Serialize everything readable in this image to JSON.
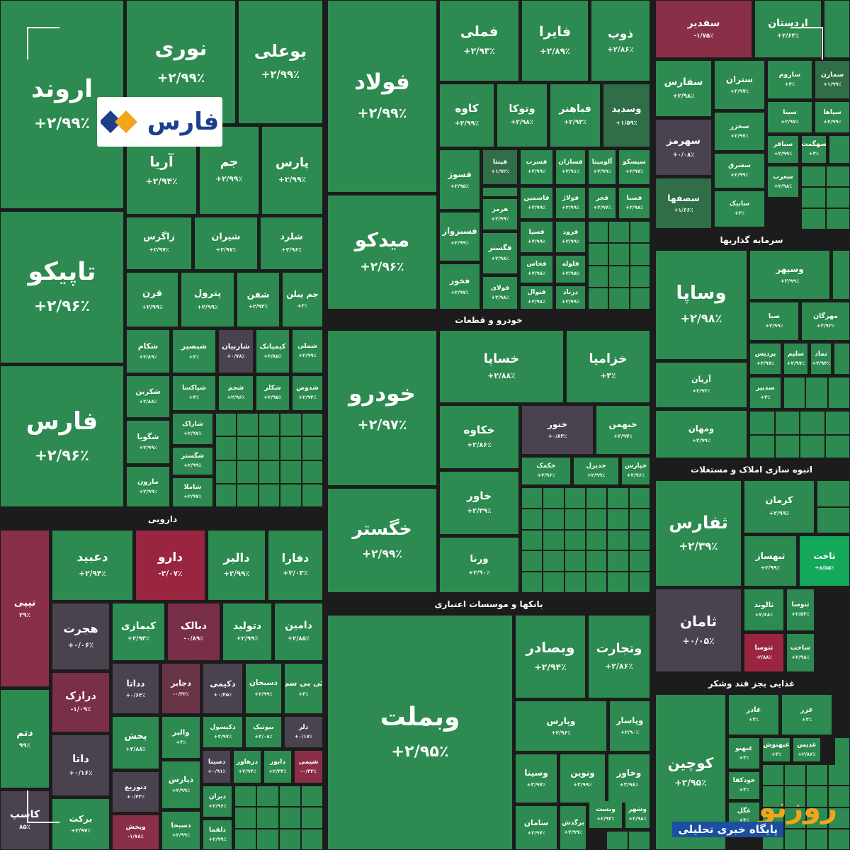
{
  "tiles": [
    {
      "name": "اروند",
      "change": "+۲/۹۹٪",
      "color": "#2d8a50"
    },
    {
      "name": "تاپیکو",
      "change": "+۲/۹۶٪",
      "color": "#2d8a50"
    },
    {
      "name": "فارس",
      "change": "+۲/۹۶٪",
      "color": "#2d8a50"
    },
    {
      "name": "نوری",
      "change": "+۲/۹۹٪",
      "color": "#2d8a50"
    },
    {
      "name": "بوعلی",
      "change": "+۲/۹۹٪",
      "color": "#2d8a50"
    },
    {
      "name": "آریا",
      "change": "+۲/۹۴٪",
      "color": "#2d8a50"
    },
    {
      "name": "جم",
      "change": "+۲/۹۹٪",
      "color": "#2d8a50"
    },
    {
      "name": "پارس",
      "change": "+۲/۹۹٪",
      "color": "#2d8a50"
    },
    {
      "name": "زاگرس",
      "change": "+۲/۹۷٪",
      "color": "#2d8a50"
    },
    {
      "name": "شیران",
      "change": "+۲/۹۷٪",
      "color": "#2d8a50"
    },
    {
      "name": "شلرد",
      "change": "+۲/۹۶٪",
      "color": "#2d8a50"
    },
    {
      "name": "قرن",
      "change": "+۲/۹۹٪",
      "color": "#2d8a50"
    },
    {
      "name": "پترول",
      "change": "+۲/۹۹٪",
      "color": "#2d8a50"
    },
    {
      "name": "شفن",
      "change": "+۲/۹۳٪",
      "color": "#2d8a50"
    },
    {
      "name": "جم پیلن",
      "change": "+۳٪",
      "color": "#2d8a50"
    },
    {
      "name": "شکام",
      "change": "+۲/۸۹٪",
      "color": "#2d8a50"
    },
    {
      "name": "شبصیر",
      "change": "+۳٪",
      "color": "#2d8a50"
    },
    {
      "name": "شاربیان",
      "change": "+۰/۷۸٪",
      "color": "#4b4250"
    },
    {
      "name": "کیمیاتک",
      "change": "+۲/۸۵٪",
      "color": "#2d8a50"
    },
    {
      "name": "شملی",
      "change": "+۲/۹۹٪",
      "color": "#2d8a50"
    },
    {
      "name": "شکربن",
      "change": "+۲/۸۸٪",
      "color": "#2d8a50"
    },
    {
      "name": "شپاکسا",
      "change": "+۳٪",
      "color": "#2d8a50"
    },
    {
      "name": "شجم",
      "change": "+۲/۹۶٪",
      "color": "#2d8a50"
    },
    {
      "name": "شکلر",
      "change": "+۲/۹۵٪",
      "color": "#2d8a50"
    },
    {
      "name": "شدوص",
      "change": "+۲/۹۴٪",
      "color": "#2d8a50"
    },
    {
      "name": "شگویا",
      "change": "+۲/۹۹٪",
      "color": "#2d8a50"
    },
    {
      "name": "شاراک",
      "change": "+۲/۹۷٪",
      "color": "#2d8a50"
    },
    {
      "name": "شگستر",
      "change": "+۲/۹۹٪",
      "color": "#2d8a50"
    },
    {
      "name": "مارون",
      "change": "+۲/۹۹٪",
      "color": "#2d8a50"
    },
    {
      "name": "شاملا",
      "change": "+۲/۹۷٪",
      "color": "#2d8a50"
    },
    {
      "name": "تیپی",
      "change": "۲۹٪",
      "color": "#8a2f48"
    },
    {
      "name": "دعبید",
      "change": "+۲/۹۴٪",
      "color": "#2d8a50"
    },
    {
      "name": "دارو",
      "change": "-۲/۰۷٪",
      "color": "#9a2540"
    },
    {
      "name": "دالبر",
      "change": "+۲/۹۹٪",
      "color": "#2d8a50"
    },
    {
      "name": "دفارا",
      "change": "+۲/۰۳٪",
      "color": "#2d8a50"
    },
    {
      "name": "هجرت",
      "change": "+۰/۰۶٪",
      "color": "#4b4250"
    },
    {
      "name": "کیمازی",
      "change": "+۲/۹۳٪",
      "color": "#2d8a50"
    },
    {
      "name": "دبالک",
      "change": "-۰/۸۹٪",
      "color": "#7a2f48"
    },
    {
      "name": "دتولید",
      "change": "+۲/۹۹٪",
      "color": "#2d8a50"
    },
    {
      "name": "دامین",
      "change": "+۲/۸۵٪",
      "color": "#2d8a50"
    },
    {
      "name": "دتم",
      "change": "۹۹٪",
      "color": "#2d8a50"
    },
    {
      "name": "درازک",
      "change": "-۱/۰۹٪",
      "color": "#7a2f48"
    },
    {
      "name": "دداتا",
      "change": "+۰/۶۳٪",
      "color": "#4b4250"
    },
    {
      "name": "دجابر",
      "change": "-۰/۳۲٪",
      "color": "#6a3448"
    },
    {
      "name": "دکیمی",
      "change": "+۰/۴۵٪",
      "color": "#4b4250"
    },
    {
      "name": "دسبحان",
      "change": "+۲/۹۹٪",
      "color": "#2d8a50"
    },
    {
      "name": "کی بی سی",
      "change": "+۳٪",
      "color": "#2d8a50"
    },
    {
      "name": "داتا",
      "change": "+۰/۱۶٪",
      "color": "#4b4250"
    },
    {
      "name": "پخش",
      "change": "+۲/۸۸٪",
      "color": "#2d8a50"
    },
    {
      "name": "والبر",
      "change": "+۳٪",
      "color": "#2d8a50"
    },
    {
      "name": "دکپسول",
      "change": "+۲/۹۷٪",
      "color": "#2d8a50"
    },
    {
      "name": "بیوتیک",
      "change": "+۲/۰۸٪",
      "color": "#2d8a50"
    },
    {
      "name": "دلر",
      "change": "+۰/۱۷٪",
      "color": "#4b4250"
    },
    {
      "name": "دتوزیع",
      "change": "+۰/۴۳٪",
      "color": "#4b4250"
    },
    {
      "name": "دپارس",
      "change": "+۲/۹۹٪",
      "color": "#2d8a50"
    },
    {
      "name": "دسینا",
      "change": "+۰/۹۱٪",
      "color": "#4b4250"
    },
    {
      "name": "درهاور",
      "change": "+۲/۹۴٪",
      "color": "#2d8a50"
    },
    {
      "name": "دابور",
      "change": "+۲/۳۳٪",
      "color": "#2d8a50"
    },
    {
      "name": "شیمی",
      "change": "-۰/۳۳٪",
      "color": "#8a2f48"
    },
    {
      "name": "دیران",
      "change": "+۲/۹۶٪",
      "color": "#2d8a50"
    },
    {
      "name": "دلقما",
      "change": "+۲/۹۹٪",
      "color": "#2d8a50"
    },
    {
      "name": "برکت",
      "change": "+۲/۹۷٪",
      "color": "#2d8a50"
    },
    {
      "name": "وپخش",
      "change": "-۱/۷۸٪",
      "color": "#8a2f48"
    },
    {
      "name": "دسبحا",
      "change": "+۲/۹۹٪",
      "color": "#2d8a50"
    },
    {
      "name": "کاسپ",
      "change": "۸۵٪",
      "color": "#4b4250"
    },
    {
      "name": "فولاد",
      "change": "+۲/۹۹٪",
      "color": "#2d8a50"
    },
    {
      "name": "میدکو",
      "change": "+۲/۹۶٪",
      "color": "#2d8a50"
    },
    {
      "name": "فملی",
      "change": "+۲/۹۳٪",
      "color": "#2d8a50"
    },
    {
      "name": "فایرا",
      "change": "+۲/۸۹٪",
      "color": "#2d8a50"
    },
    {
      "name": "ذوب",
      "change": "+۲/۸۶٪",
      "color": "#2d8a50"
    },
    {
      "name": "کاوه",
      "change": "+۲/۹۹٪",
      "color": "#2d8a50"
    },
    {
      "name": "وتوکا",
      "change": "+۲/۹۸٪",
      "color": "#2d8a50"
    },
    {
      "name": "فباهنر",
      "change": "+۲/۹۳٪",
      "color": "#2d8a50"
    },
    {
      "name": "وسدید",
      "change": "+۱/۵۹٪",
      "color": "#2f6e47"
    },
    {
      "name": "فسوژ",
      "change": "+۲/۹۵٪",
      "color": "#2d8a50"
    },
    {
      "name": "فپنتا",
      "change": "+۱/۹۲٪",
      "color": "#2f6e47"
    },
    {
      "name": "فسرب",
      "change": "+۲/۹۹٪",
      "color": "#2d8a50"
    },
    {
      "name": "فسازان",
      "change": "+۲/۹۱٪",
      "color": "#2d8a50"
    },
    {
      "name": "آلومینا",
      "change": "+۲/۹۹٪",
      "color": "#2d8a50"
    },
    {
      "name": "سیسکو",
      "change": "+۲/۹۷٪",
      "color": "#2d8a50"
    },
    {
      "name": "هرمز",
      "change": "+۲/۹۹٪",
      "color": "#2d8a50"
    },
    {
      "name": "فاسمین",
      "change": "+۲/۹۹٪",
      "color": "#2d8a50"
    },
    {
      "name": "فولاژ",
      "change": "+۲/۹۹٪",
      "color": "#2d8a50"
    },
    {
      "name": "فجر",
      "change": "+۲/۹۷٪",
      "color": "#2d8a50"
    },
    {
      "name": "فصبا",
      "change": "+۲/۹۸٪",
      "color": "#2d8a50"
    },
    {
      "name": "فسپا",
      "change": "+۲/۹۹٪",
      "color": "#2d8a50"
    },
    {
      "name": "فرود",
      "change": "+۲/۹۹٪",
      "color": "#2d8a50"
    },
    {
      "name": "فسبزوار",
      "change": "+۲/۹۹٪",
      "color": "#2d8a50"
    },
    {
      "name": "فگستر",
      "change": "+۲/۹۸٪",
      "color": "#2d8a50"
    },
    {
      "name": "فخاس",
      "change": "+۲/۹۸٪",
      "color": "#2d8a50"
    },
    {
      "name": "فلوله",
      "change": "+۲/۹۵٪",
      "color": "#2d8a50"
    },
    {
      "name": "فخوز",
      "change": "+۲/۹۷٪",
      "color": "#2d8a50"
    },
    {
      "name": "فولای",
      "change": "+۲/۹۸٪",
      "color": "#2d8a50"
    },
    {
      "name": "فنوال",
      "change": "+۲/۹۸٪",
      "color": "#2d8a50"
    },
    {
      "name": "درباد",
      "change": "+۲/۹۹٪",
      "color": "#2d8a50"
    },
    {
      "name": "خودرو",
      "change": "+۲/۹۷٪",
      "color": "#2d8a50"
    },
    {
      "name": "خگستر",
      "change": "+۲/۹۹٪",
      "color": "#2d8a50"
    },
    {
      "name": "خساپا",
      "change": "+۲/۸۸٪",
      "color": "#2d8a50"
    },
    {
      "name": "خزامیا",
      "change": "+۳٪",
      "color": "#2d8a50"
    },
    {
      "name": "خکاوه",
      "change": "+۲/۸۶٪",
      "color": "#2d8a50"
    },
    {
      "name": "خنور",
      "change": "+۰/۸۳٪",
      "color": "#4b4250"
    },
    {
      "name": "خبهمن",
      "change": "+۲/۹۷٪",
      "color": "#2d8a50"
    },
    {
      "name": "خکمک",
      "change": "+۲/۹۶٪",
      "color": "#2d8a50"
    },
    {
      "name": "خدیزل",
      "change": "+۲/۹۹٪",
      "color": "#2d8a50"
    },
    {
      "name": "خپارس",
      "change": "+۲/۹۶٪",
      "color": "#2d8a50"
    },
    {
      "name": "خاور",
      "change": "+۲/۳۹٪",
      "color": "#2d8a50"
    },
    {
      "name": "ورنا",
      "change": "+۲/۹۰٪",
      "color": "#2d8a50"
    },
    {
      "name": "وبملت",
      "change": "+۲/۹۵٪",
      "color": "#2d8a50"
    },
    {
      "name": "وبصادر",
      "change": "+۲/۹۴٪",
      "color": "#2d8a50"
    },
    {
      "name": "وتجارت",
      "change": "+۲/۸۶٪",
      "color": "#2d8a50"
    },
    {
      "name": "وپارس",
      "change": "+۲/۹۶٪",
      "color": "#2d8a50"
    },
    {
      "name": "وپاسار",
      "change": "+۲/۹۰٪",
      "color": "#2d8a50"
    },
    {
      "name": "وسینا",
      "change": "+۲/۹۷٪",
      "color": "#2d8a50"
    },
    {
      "name": "ونوین",
      "change": "+۲/۹۹٪",
      "color": "#2d8a50"
    },
    {
      "name": "وخاور",
      "change": "+۲/۹۸٪",
      "color": "#2d8a50"
    },
    {
      "name": "سامان",
      "change": "+۲/۹۷٪",
      "color": "#2d8a50"
    },
    {
      "name": "برگدش",
      "change": "+۲/۹۹٪",
      "color": "#2d8a50"
    },
    {
      "name": "وبست",
      "change": "+۲/۹۳٪",
      "color": "#2d8a50"
    },
    {
      "name": "وشهر",
      "change": "+۲/۹۸٪",
      "color": "#2d8a50"
    },
    {
      "name": "سفدیر",
      "change": "-۱/۷۵٪",
      "color": "#8a2f48"
    },
    {
      "name": "اردستان",
      "change": "+۲/۶۴٪",
      "color": "#2d8a50"
    },
    {
      "name": "سفارس",
      "change": "+۲/۹۸٪",
      "color": "#2d8a50"
    },
    {
      "name": "ستران",
      "change": "+۲/۹۷٪",
      "color": "#2d8a50"
    },
    {
      "name": "ساروم",
      "change": "+۳٪",
      "color": "#2d8a50"
    },
    {
      "name": "سمازن",
      "change": "+۱/۹۹٪",
      "color": "#2f6e47"
    },
    {
      "name": "سهرمز",
      "change": "+۰/۰۸٪",
      "color": "#4b4250"
    },
    {
      "name": "سخزر",
      "change": "+۲/۹۷٪",
      "color": "#2d8a50"
    },
    {
      "name": "سیتا",
      "change": "+۲/۹۷٪",
      "color": "#2d8a50"
    },
    {
      "name": "سپاها",
      "change": "+۲/۹۹٪",
      "color": "#2d8a50"
    },
    {
      "name": "سشرق",
      "change": "+۲/۹۹٪",
      "color": "#2d8a50"
    },
    {
      "name": "سباقر",
      "change": "+۲/۹۹٪",
      "color": "#2d8a50"
    },
    {
      "name": "سهگمت",
      "change": "+۳٪",
      "color": "#2d8a50"
    },
    {
      "name": "سصفها",
      "change": "+۱/۶۶٪",
      "color": "#2f6e47"
    },
    {
      "name": "سابیک",
      "change": "+۳٪",
      "color": "#2d8a50"
    },
    {
      "name": "سغرب",
      "change": "+۲/۹۸٪",
      "color": "#2d8a50"
    },
    {
      "name": "وساپا",
      "change": "+۲/۹۸٪",
      "color": "#2d8a50"
    },
    {
      "name": "وسپهر",
      "change": "+۲/۹۹٪",
      "color": "#2d8a50"
    },
    {
      "name": "صبا",
      "change": "+۲/۹۹٪",
      "color": "#2d8a50"
    },
    {
      "name": "مهرگان",
      "change": "+۲/۹۲٪",
      "color": "#2d8a50"
    },
    {
      "name": "پردیس",
      "change": "+۲/۹۷٪",
      "color": "#2d8a50"
    },
    {
      "name": "سلیم",
      "change": "+۲/۹۷٪",
      "color": "#2d8a50"
    },
    {
      "name": "نماد",
      "change": "+۲/۹۴٪",
      "color": "#2d8a50"
    },
    {
      "name": "سدبیر",
      "change": "+۳٪",
      "color": "#2d8a50"
    },
    {
      "name": "آریان",
      "change": "+۲/۹۳٪",
      "color": "#2d8a50"
    },
    {
      "name": "ومهان",
      "change": "+۲/۹۹٪",
      "color": "#2d8a50"
    },
    {
      "name": "ثفارس",
      "change": "+۲/۳۹٪",
      "color": "#2d8a50"
    },
    {
      "name": "کرمان",
      "change": "+۲/۹۹٪",
      "color": "#2d8a50"
    },
    {
      "name": "ثبهساز",
      "change": "+۲/۹۹٪",
      "color": "#2d8a50"
    },
    {
      "name": "ثاخت",
      "change": "+۸/۵۵٪",
      "color": "#14a85a"
    },
    {
      "name": "ثامان",
      "change": "+۰/۰۵٪",
      "color": "#4b4250"
    },
    {
      "name": "ثالوند",
      "change": "+۲/۶۸٪",
      "color": "#2d8a50"
    },
    {
      "name": "ثنوسا",
      "change": "+۲/۵۳٪",
      "color": "#2d8a50"
    },
    {
      "name": "ثتوسا",
      "change": "-۲/۸۸٪",
      "color": "#9a2540"
    },
    {
      "name": "ساخت",
      "change": "+۲/۹۸٪",
      "color": "#2d8a50"
    },
    {
      "name": "کوچین",
      "change": "+۲/۹۵٪",
      "color": "#2d8a50"
    },
    {
      "name": "غاذر",
      "change": "+۳٪",
      "color": "#2d8a50"
    },
    {
      "name": "غزر",
      "change": "+۳٪",
      "color": "#2d8a50"
    },
    {
      "name": "غبهنو",
      "change": "+۳٪",
      "color": "#2d8a50"
    },
    {
      "name": "غبهنوش",
      "change": "+۳٪",
      "color": "#2d8a50"
    },
    {
      "name": "غدیس",
      "change": "+۲/۸۶٪",
      "color": "#2d8a50"
    },
    {
      "name": "خودکفا",
      "change": "+۳٪",
      "color": "#2d8a50"
    },
    {
      "name": "غگل",
      "change": "+۳٪",
      "color": "#2d8a50"
    }
  ],
  "sector_labels": [
    "دارویی",
    "خودرو و قطعات",
    "بانکها و موسسات اعتباری",
    "سرمایه گذاریها",
    "انبوه سازی املاک و مستغلات",
    "غذایی بجز قند وشکر"
  ],
  "logos": {
    "top": "فارس",
    "bottom": "روزنو",
    "bottom_tagline": "پایگاه خبری تحلیلی"
  }
}
